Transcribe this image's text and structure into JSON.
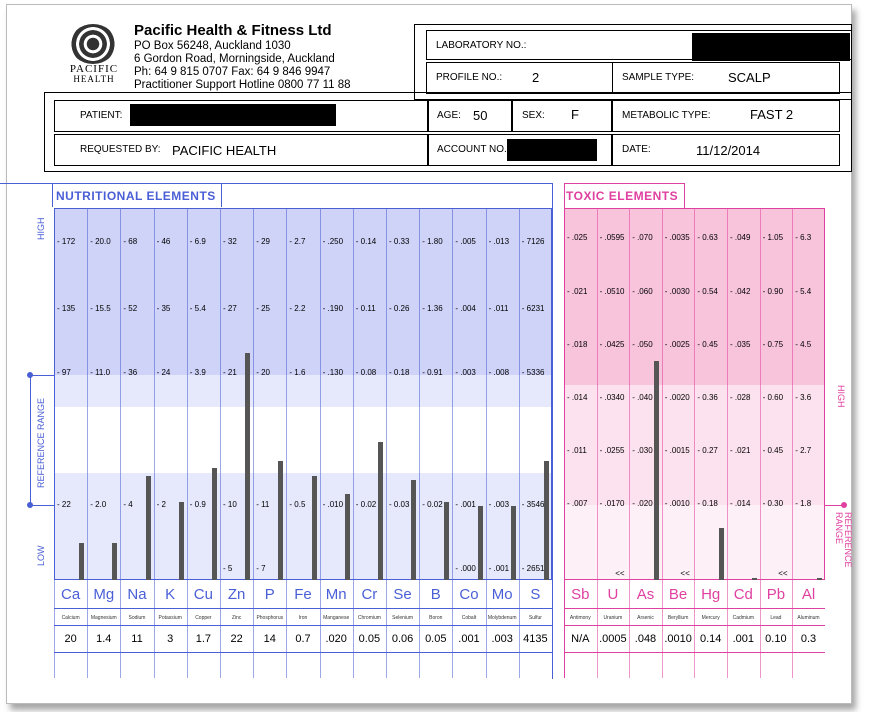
{
  "company": {
    "name": "Pacific Health & Fitness Ltd",
    "lines": [
      "PO Box 56248, Auckland 1030",
      "6 Gordon Road, Morningside, Auckland",
      "Ph: 64 9 815 0707    Fax: 64 9 846 9947",
      "Practitioner Support Hotline 0800 77 11 88"
    ],
    "logo_text": [
      "PACIFIC",
      "HEALTH"
    ]
  },
  "form": {
    "laboratory_no_label": "LABORATORY NO.:",
    "profile_no_label": "PROFILE NO.:",
    "profile_no": "2",
    "sample_type_label": "SAMPLE TYPE:",
    "sample_type": "SCALP",
    "patient_label": "PATIENT:",
    "age_label": "AGE:",
    "age": "50",
    "sex_label": "SEX:",
    "sex": "F",
    "metabolic_type_label": "METABOLIC TYPE:",
    "metabolic_type": "FAST 2",
    "requested_by_label": "REQUESTED BY:",
    "requested_by": "PACIFIC HEALTH",
    "account_no_label": "ACCOUNT NO.",
    "date_label": "DATE:",
    "date": "11/12/2014"
  },
  "chart_data": [
    {
      "type": "bar",
      "title": "NUTRITIONAL ELEMENTS",
      "band_labels": [
        "HIGH",
        "REFERENCE RANGE",
        "LOW"
      ],
      "colors": {
        "accent": "#4a5fd6",
        "band_dark": "#cfd3f8",
        "band_light": "#e6e8fc"
      },
      "categories": [
        "Ca",
        "Mg",
        "Na",
        "K",
        "Cu",
        "Zn",
        "P",
        "Fe",
        "Mn",
        "Cr",
        "Se",
        "B",
        "Co",
        "Mo",
        "S"
      ],
      "names": [
        "Calcium",
        "Magnesium",
        "Sodium",
        "Potassium",
        "Copper",
        "Zinc",
        "Phosphorus",
        "Iron",
        "Manganese",
        "Chromium",
        "Selenium",
        "Boron",
        "Cobalt",
        "Molybdenum",
        "Sulfur"
      ],
      "result_values": [
        "20",
        "1.4",
        "11",
        "3",
        "1.7",
        "22",
        "14",
        "0.7",
        ".020",
        "0.05",
        "0.06",
        "0.05",
        ".001",
        ".003",
        "4135"
      ],
      "values": [
        20,
        1.4,
        11,
        3,
        1.7,
        22,
        14,
        0.7,
        0.02,
        0.05,
        0.06,
        0.05,
        0.001,
        0.003,
        4135
      ],
      "scale_labels": [
        [
          "172",
          "135",
          "97",
          "22",
          ""
        ],
        [
          "20.0",
          "15.5",
          "11.0",
          "2.0",
          ""
        ],
        [
          "68",
          "52",
          "36",
          "4",
          ""
        ],
        [
          "46",
          "35",
          "24",
          "2",
          ""
        ],
        [
          "6.9",
          "5.4",
          "3.9",
          "0.9",
          ""
        ],
        [
          "32",
          "27",
          "21",
          "10",
          "5"
        ],
        [
          "29",
          "25",
          "20",
          "11",
          "7"
        ],
        [
          "2.7",
          "2.2",
          "1.6",
          "0.5",
          ""
        ],
        [
          ".250",
          ".190",
          ".130",
          ".010",
          ""
        ],
        [
          "0.14",
          "0.11",
          "0.08",
          "0.02",
          ""
        ],
        [
          "0.33",
          "0.26",
          "0.18",
          "0.03",
          ""
        ],
        [
          "1.80",
          "1.36",
          "0.91",
          "0.02",
          ""
        ],
        [
          ".005",
          ".004",
          ".003",
          ".001",
          ".000"
        ],
        [
          ".013",
          ".011",
          ".008",
          ".003",
          ".001"
        ],
        [
          "7126",
          "6231",
          "5336",
          "3546",
          "2651"
        ]
      ],
      "bar_level_percent": [
        10,
        10,
        28,
        21,
        30,
        61,
        32,
        28,
        23,
        37,
        27,
        21,
        20,
        20,
        32
      ]
    },
    {
      "type": "bar",
      "title": "TOXIC ELEMENTS",
      "band_labels": [
        "HIGH",
        "REFERENCE RANGE"
      ],
      "colors": {
        "accent": "#e040a0",
        "band_dark": "#f8c4dc",
        "band_light": "#fce2ee"
      },
      "categories": [
        "Sb",
        "U",
        "As",
        "Be",
        "Hg",
        "Cd",
        "Pb",
        "Al"
      ],
      "names": [
        "Antimony",
        "Uranium",
        "Arsenic",
        "Beryllium",
        "Mercury",
        "Cadmium",
        "Lead",
        "Aluminum"
      ],
      "result_values": [
        "N/A",
        ".0005",
        ".048",
        ".0010",
        "0.14",
        ".001",
        "0.10",
        "0.3"
      ],
      "values": [
        null,
        0.0005,
        0.048,
        0.001,
        0.14,
        0.001,
        0.1,
        0.3
      ],
      "scale_labels": [
        [
          ".025",
          ".021",
          ".018",
          ".014",
          ".011",
          ".007"
        ],
        [
          ".0595",
          ".0510",
          ".0425",
          ".0340",
          ".0255",
          ".0170"
        ],
        [
          ".070",
          ".060",
          ".050",
          ".040",
          ".030",
          ".020"
        ],
        [
          ".0035",
          ".0030",
          ".0025",
          ".0020",
          ".0015",
          ".0010"
        ],
        [
          "0.63",
          "0.54",
          "0.45",
          "0.36",
          "0.27",
          "0.18"
        ],
        [
          ".049",
          ".042",
          ".035",
          ".028",
          ".021",
          ".014"
        ],
        [
          "1.05",
          "0.90",
          "0.75",
          "0.60",
          "0.45",
          "0.30"
        ],
        [
          "6.3",
          "5.4",
          "4.5",
          "3.6",
          "2.7",
          "1.8"
        ]
      ],
      "below_markers": [
        "",
        "<<",
        "",
        "<<",
        "",
        "",
        "<<",
        ""
      ],
      "bar_level_percent": [
        0,
        0,
        59,
        0,
        14,
        0.5,
        0,
        0.5
      ]
    }
  ]
}
